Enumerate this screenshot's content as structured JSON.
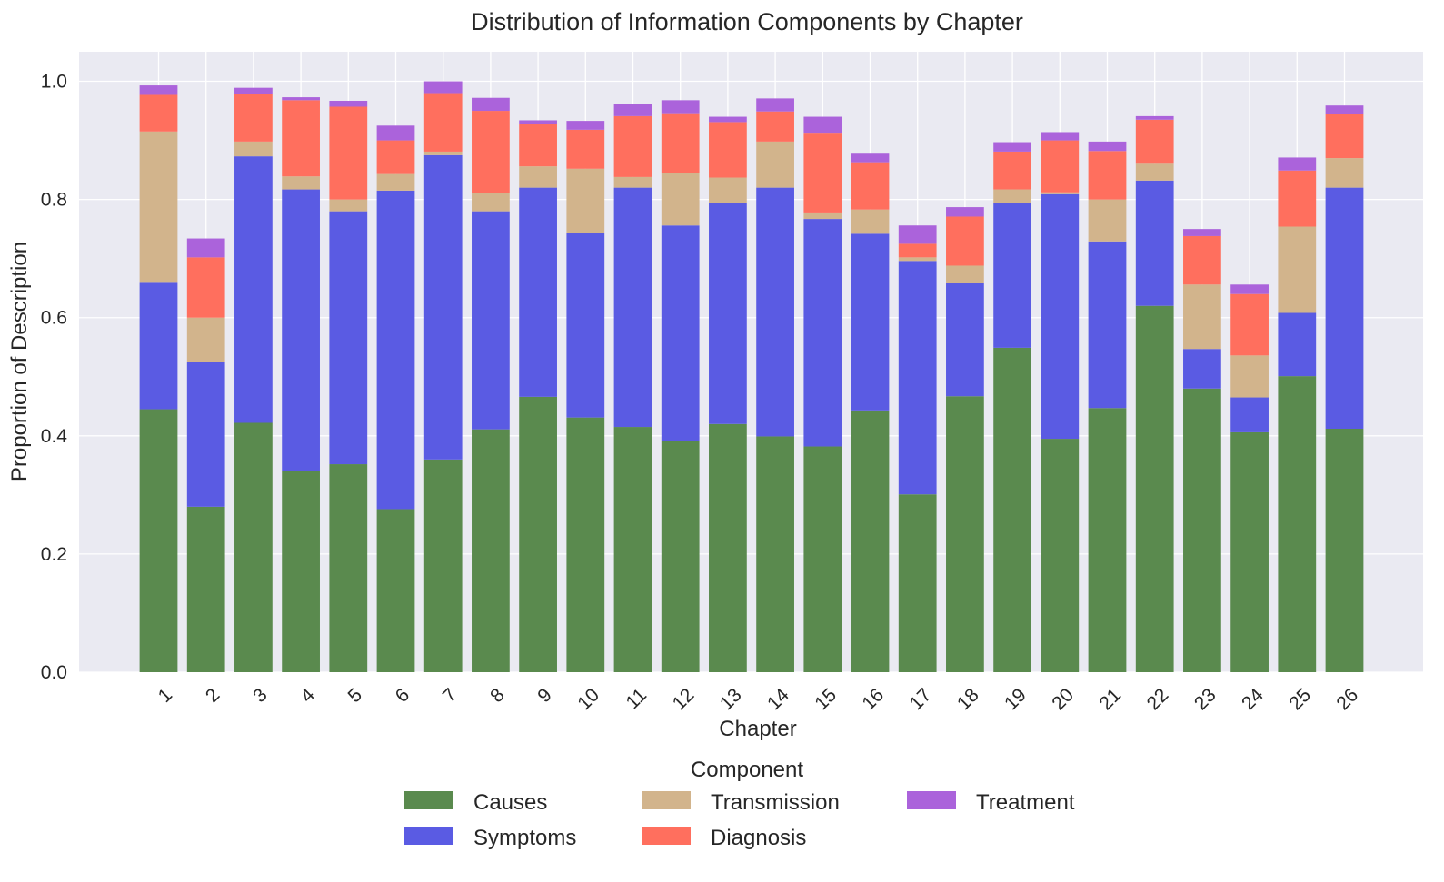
{
  "chart_data": {
    "type": "bar",
    "stacked": true,
    "title": "Distribution of Information Components by Chapter",
    "xlabel": "Chapter",
    "ylabel": "Proportion of Description",
    "ylim": [
      0,
      1.05
    ],
    "yticks": [
      "0.0",
      "0.2",
      "0.4",
      "0.6",
      "0.8",
      "1.0"
    ],
    "grid": true,
    "legend_title": "Component",
    "legend_position": "bottom-center",
    "categories": [
      "1",
      "2",
      "3",
      "4",
      "5",
      "6",
      "7",
      "8",
      "9",
      "10",
      "11",
      "12",
      "13",
      "14",
      "15",
      "16",
      "17",
      "18",
      "19",
      "20",
      "21",
      "22",
      "23",
      "24",
      "25",
      "26"
    ],
    "series": [
      {
        "name": "Causes",
        "color": "#5a8a4e",
        "values": [
          0.445,
          0.28,
          0.422,
          0.34,
          0.352,
          0.276,
          0.36,
          0.411,
          0.466,
          0.431,
          0.415,
          0.392,
          0.42,
          0.399,
          0.382,
          0.443,
          0.301,
          0.467,
          0.549,
          0.395,
          0.447,
          0.62,
          0.48,
          0.406,
          0.501,
          0.412
        ]
      },
      {
        "name": "Symptoms",
        "color": "#5a5be3",
        "values": [
          0.214,
          0.245,
          0.451,
          0.477,
          0.428,
          0.539,
          0.515,
          0.369,
          0.354,
          0.312,
          0.405,
          0.364,
          0.374,
          0.421,
          0.385,
          0.299,
          0.395,
          0.191,
          0.245,
          0.414,
          0.282,
          0.212,
          0.067,
          0.059,
          0.107,
          0.408
        ]
      },
      {
        "name": "Transmission",
        "color": "#d2b48c",
        "values": [
          0.256,
          0.075,
          0.025,
          0.022,
          0.02,
          0.028,
          0.006,
          0.031,
          0.036,
          0.109,
          0.018,
          0.088,
          0.043,
          0.078,
          0.011,
          0.041,
          0.006,
          0.03,
          0.023,
          0.003,
          0.071,
          0.03,
          0.109,
          0.071,
          0.146,
          0.05
        ]
      },
      {
        "name": "Diagnosis",
        "color": "#ff6f5e",
        "values": [
          0.062,
          0.102,
          0.08,
          0.129,
          0.157,
          0.057,
          0.099,
          0.139,
          0.071,
          0.066,
          0.103,
          0.102,
          0.094,
          0.051,
          0.135,
          0.08,
          0.023,
          0.083,
          0.064,
          0.088,
          0.082,
          0.073,
          0.082,
          0.104,
          0.095,
          0.075
        ]
      },
      {
        "name": "Treatment",
        "color": "#ab63db",
        "values": [
          0.016,
          0.032,
          0.011,
          0.005,
          0.01,
          0.025,
          0.02,
          0.022,
          0.007,
          0.015,
          0.02,
          0.022,
          0.009,
          0.022,
          0.027,
          0.016,
          0.031,
          0.016,
          0.016,
          0.014,
          0.016,
          0.006,
          0.012,
          0.016,
          0.022,
          0.014
        ]
      }
    ]
  }
}
